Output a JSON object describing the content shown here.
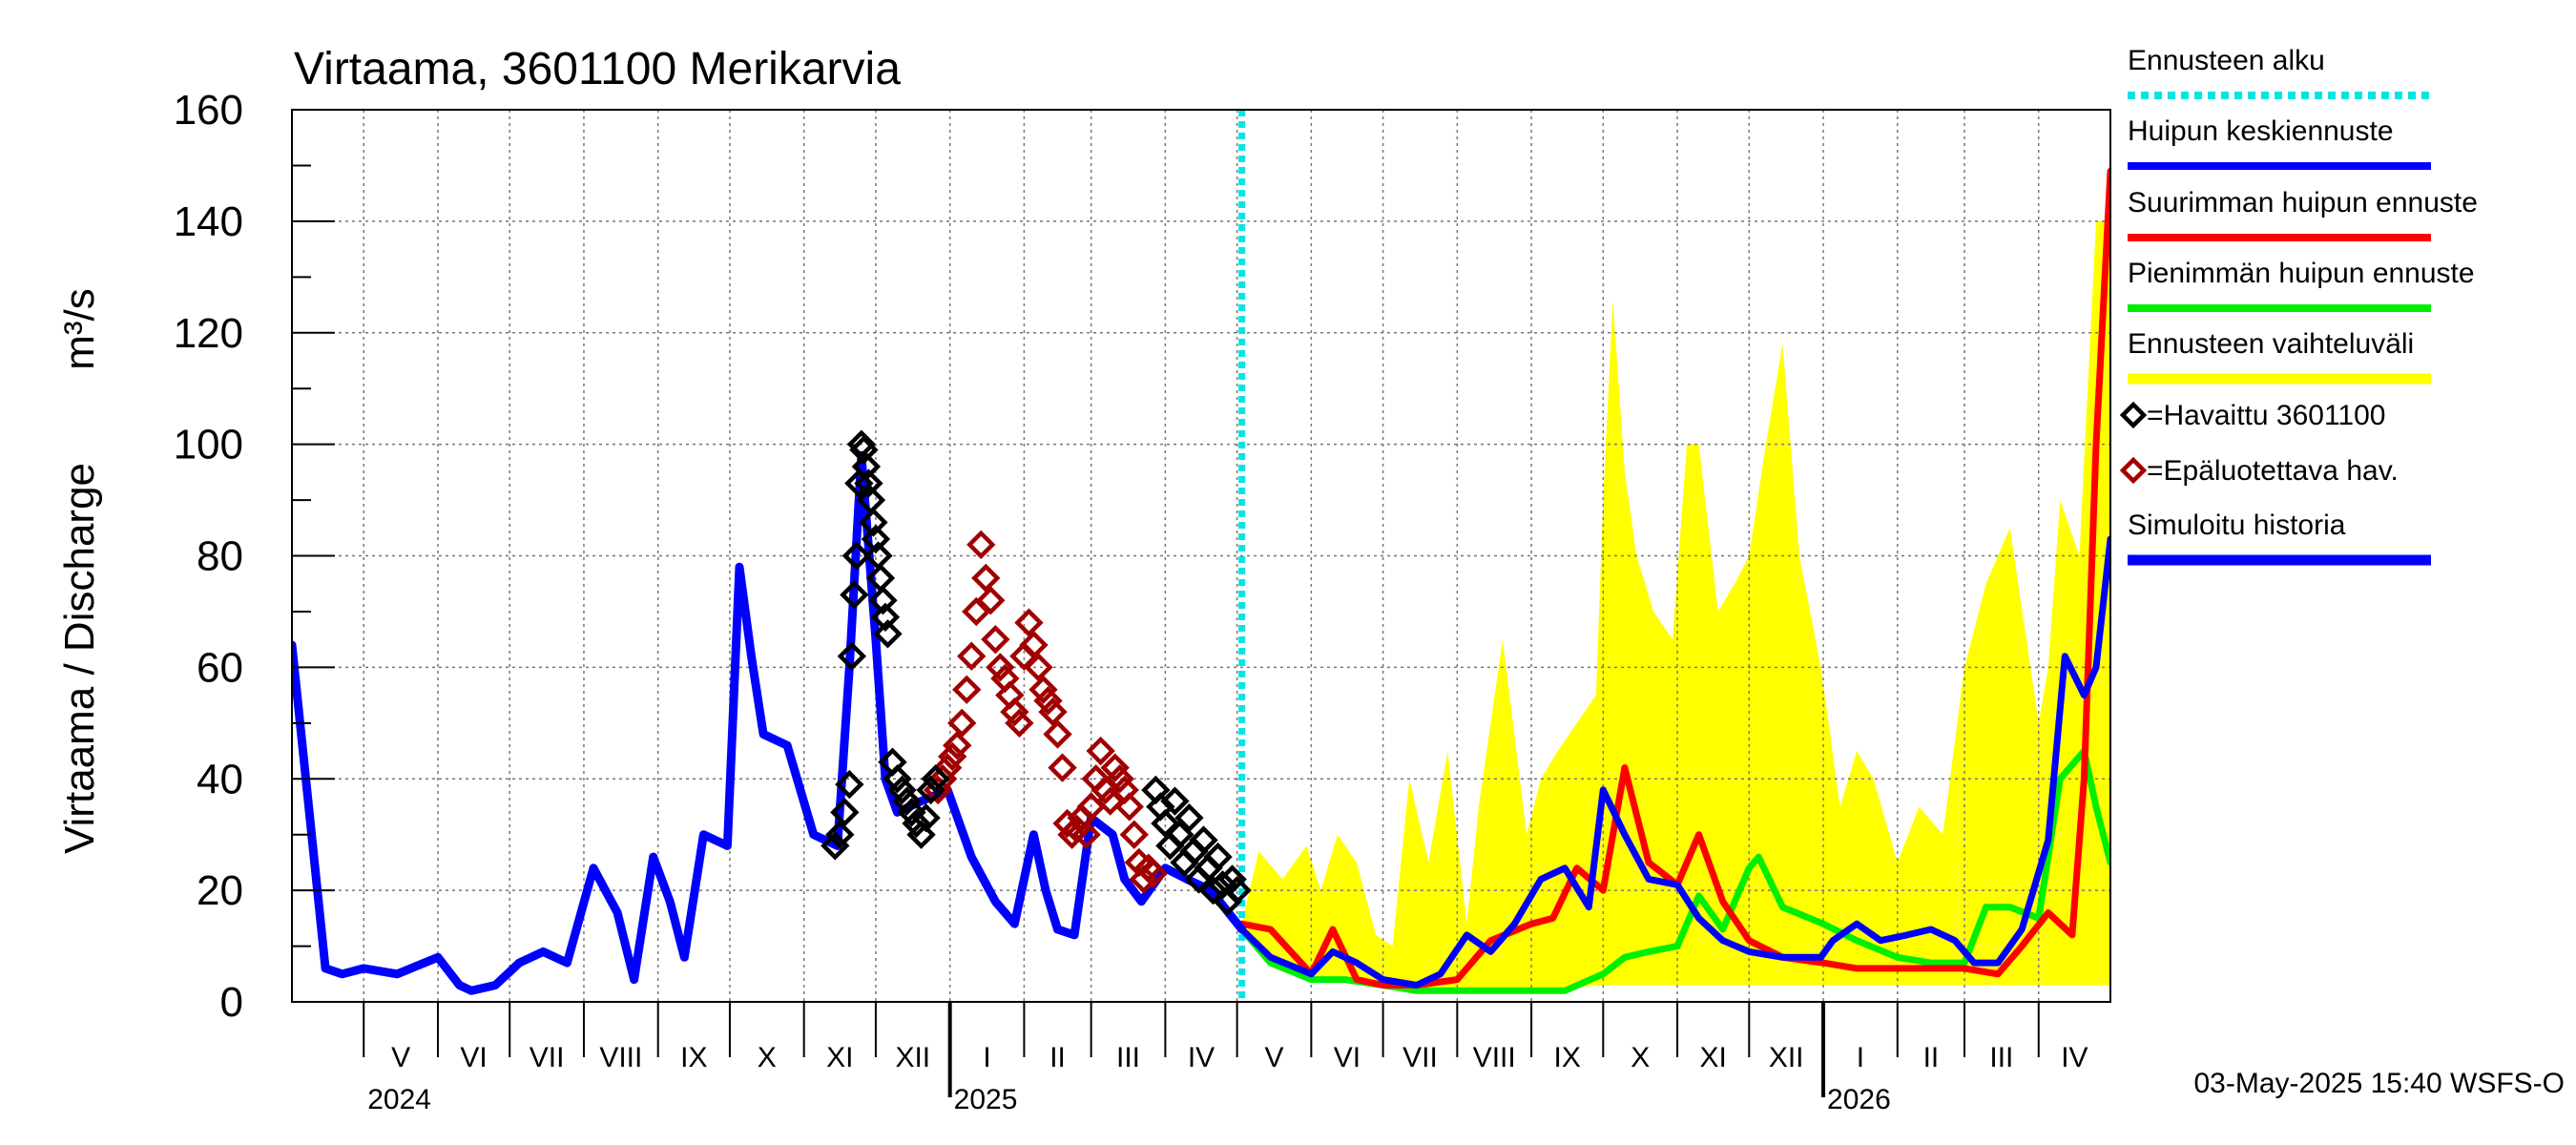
{
  "chart_data": {
    "type": "line",
    "title": "Virtaama, 3601100 Merikarvia",
    "ylabel": "Virtaama / Discharge",
    "yunit": "m³/s",
    "ylim": [
      0,
      160
    ],
    "yticks": [
      0,
      20,
      40,
      60,
      80,
      100,
      120,
      140,
      160
    ],
    "grid": true,
    "legend_position": "right",
    "footer": "03-May-2025 15:40 WSFS-O",
    "xlim": [
      "2024-04-01",
      "2026-05-01"
    ],
    "forecast_start": "2025-05-03",
    "months": [
      {
        "label": "V",
        "start": "2024-05-01"
      },
      {
        "label": "VI",
        "start": "2024-06-01"
      },
      {
        "label": "VII",
        "start": "2024-07-01"
      },
      {
        "label": "VIII",
        "start": "2024-08-01"
      },
      {
        "label": "IX",
        "start": "2024-09-01"
      },
      {
        "label": "X",
        "start": "2024-10-01"
      },
      {
        "label": "XI",
        "start": "2024-11-01"
      },
      {
        "label": "XII",
        "start": "2024-12-01"
      },
      {
        "label": "I",
        "start": "2025-01-01"
      },
      {
        "label": "II",
        "start": "2025-02-01"
      },
      {
        "label": "III",
        "start": "2025-03-01"
      },
      {
        "label": "IV",
        "start": "2025-04-01"
      },
      {
        "label": "V",
        "start": "2025-05-01"
      },
      {
        "label": "VI",
        "start": "2025-06-01"
      },
      {
        "label": "VII",
        "start": "2025-07-01"
      },
      {
        "label": "VIII",
        "start": "2025-08-01"
      },
      {
        "label": "IX",
        "start": "2025-09-01"
      },
      {
        "label": "X",
        "start": "2025-10-01"
      },
      {
        "label": "XI",
        "start": "2025-11-01"
      },
      {
        "label": "XII",
        "start": "2025-12-01"
      },
      {
        "label": "I",
        "start": "2026-01-01"
      },
      {
        "label": "II",
        "start": "2026-02-01"
      },
      {
        "label": "III",
        "start": "2026-03-01"
      },
      {
        "label": "IV",
        "start": "2026-04-01"
      }
    ],
    "years": [
      {
        "label": "2024",
        "start": "2024-05-01"
      },
      {
        "label": "2025",
        "start": "2025-01-01"
      },
      {
        "label": "2026",
        "start": "2026-01-01"
      }
    ],
    "legend": [
      {
        "key": "forecast_start",
        "label": "Ennusteen alku",
        "color": "#00e5e5",
        "style": "dotted"
      },
      {
        "key": "mean",
        "label": "Huipun keskiennuste",
        "color": "#0000ff",
        "style": "line"
      },
      {
        "key": "max",
        "label": "Suurimman huipun ennuste",
        "color": "#ff0000",
        "style": "line"
      },
      {
        "key": "min",
        "label": "Pienimmän huipun ennuste",
        "color": "#00ee00",
        "style": "line"
      },
      {
        "key": "range",
        "label": "Ennusteen vaihteluväli",
        "color": "#ffff00",
        "style": "band"
      },
      {
        "key": "observed",
        "label": "=Havaittu 3601100",
        "color": "#000000",
        "style": "diamond"
      },
      {
        "key": "unreliable",
        "label": "=Epäluotettava hav.",
        "color": "#a00000",
        "style": "diamond"
      },
      {
        "key": "simulated",
        "label": "Simuloitu historia",
        "color": "#0000ff",
        "style": "thick"
      }
    ],
    "series": [
      {
        "key": "simulated",
        "name": "Simuloitu historia",
        "color": "#0000ff",
        "x": [
          "2024-04-01",
          "2024-04-08",
          "2024-04-15",
          "2024-04-22",
          "2024-05-01",
          "2024-05-15",
          "2024-06-01",
          "2024-06-10",
          "2024-06-15",
          "2024-06-25",
          "2024-07-05",
          "2024-07-15",
          "2024-07-25",
          "2024-08-05",
          "2024-08-15",
          "2024-08-22",
          "2024-08-30",
          "2024-09-06",
          "2024-09-12",
          "2024-09-20",
          "2024-09-30",
          "2024-10-05",
          "2024-10-10",
          "2024-10-15",
          "2024-10-25",
          "2024-11-05",
          "2024-11-15",
          "2024-11-20",
          "2024-11-25",
          "2024-12-01",
          "2024-12-05",
          "2024-12-10",
          "2024-12-20",
          "2024-12-31",
          "2025-01-10",
          "2025-01-20",
          "2025-01-28",
          "2025-02-05",
          "2025-02-10",
          "2025-02-15",
          "2025-02-22",
          "2025-03-01",
          "2025-03-10",
          "2025-03-15",
          "2025-03-22",
          "2025-04-01",
          "2025-04-10",
          "2025-04-20",
          "2025-05-03"
        ],
        "y": [
          64,
          35,
          6,
          5,
          6,
          5,
          8,
          3,
          2,
          3,
          7,
          9,
          7,
          24,
          16,
          4,
          26,
          18,
          8,
          30,
          28,
          78,
          62,
          48,
          46,
          30,
          28,
          60,
          98,
          65,
          40,
          34,
          36,
          38,
          26,
          18,
          14,
          30,
          20,
          13,
          12,
          33,
          30,
          22,
          18,
          24,
          22,
          20,
          13
        ]
      },
      {
        "key": "mean",
        "name": "Huipun keskiennuste",
        "color": "#0000ff",
        "x": [
          "2025-05-03",
          "2025-05-15",
          "2025-06-01",
          "2025-06-10",
          "2025-06-20",
          "2025-07-01",
          "2025-07-15",
          "2025-07-25",
          "2025-08-05",
          "2025-08-15",
          "2025-08-25",
          "2025-09-05",
          "2025-09-15",
          "2025-09-25",
          "2025-10-01",
          "2025-10-10",
          "2025-10-20",
          "2025-11-01",
          "2025-11-10",
          "2025-11-20",
          "2025-12-01",
          "2025-12-15",
          "2025-12-31",
          "2026-01-05",
          "2026-01-15",
          "2026-01-25",
          "2026-02-05",
          "2026-02-15",
          "2026-02-25",
          "2026-03-05",
          "2026-03-15",
          "2026-03-25",
          "2026-04-05",
          "2026-04-12",
          "2026-04-20",
          "2026-04-25",
          "2026-05-01"
        ],
        "y": [
          13,
          8,
          5,
          9,
          7,
          4,
          3,
          5,
          12,
          9,
          14,
          22,
          24,
          17,
          38,
          30,
          22,
          21,
          15,
          11,
          9,
          8,
          8,
          11,
          14,
          11,
          12,
          13,
          11,
          7,
          7,
          13,
          29,
          62,
          55,
          60,
          83
        ]
      },
      {
        "key": "max",
        "name": "Suurimman huipun ennuste",
        "color": "#ff0000",
        "x": [
          "2025-05-03",
          "2025-05-15",
          "2025-06-01",
          "2025-06-10",
          "2025-06-20",
          "2025-07-01",
          "2025-07-15",
          "2025-08-01",
          "2025-08-15",
          "2025-09-01",
          "2025-09-10",
          "2025-09-20",
          "2025-10-01",
          "2025-10-10",
          "2025-10-20",
          "2025-11-01",
          "2025-11-10",
          "2025-11-20",
          "2025-12-01",
          "2025-12-15",
          "2026-01-01",
          "2026-01-15",
          "2026-02-01",
          "2026-02-15",
          "2026-03-01",
          "2026-03-15",
          "2026-03-25",
          "2026-04-05",
          "2026-04-15",
          "2026-04-20",
          "2026-04-25",
          "2026-05-01"
        ],
        "y": [
          14,
          13,
          5,
          13,
          4,
          3,
          3,
          4,
          11,
          14,
          15,
          24,
          20,
          42,
          25,
          21,
          30,
          18,
          11,
          8,
          7,
          6,
          6,
          6,
          6,
          5,
          10,
          16,
          12,
          40,
          100,
          149
        ]
      },
      {
        "key": "min",
        "name": "Pienimmän huipun ennuste",
        "color": "#00ee00",
        "x": [
          "2025-05-03",
          "2025-05-15",
          "2025-06-01",
          "2025-06-15",
          "2025-07-01",
          "2025-07-15",
          "2025-08-01",
          "2025-08-15",
          "2025-09-01",
          "2025-09-15",
          "2025-10-01",
          "2025-10-10",
          "2025-10-20",
          "2025-11-01",
          "2025-11-10",
          "2025-11-20",
          "2025-12-01",
          "2025-12-05",
          "2025-12-15",
          "2026-01-01",
          "2026-01-15",
          "2026-02-01",
          "2026-02-15",
          "2026-03-01",
          "2026-03-10",
          "2026-03-20",
          "2026-04-01",
          "2026-04-10",
          "2026-04-20",
          "2026-04-25",
          "2026-05-01"
        ],
        "y": [
          13,
          7,
          4,
          4,
          3,
          2,
          2,
          2,
          2,
          2,
          5,
          8,
          9,
          10,
          19,
          13,
          24,
          26,
          17,
          14,
          11,
          8,
          7,
          7,
          17,
          17,
          15,
          40,
          45,
          35,
          25
        ]
      },
      {
        "key": "range_top",
        "name": "Ennusteen vaihteluväli",
        "color": "#ffff00",
        "x": [
          "2025-05-03",
          "2025-05-10",
          "2025-05-20",
          "2025-05-30",
          "2025-06-05",
          "2025-06-12",
          "2025-06-20",
          "2025-06-28",
          "2025-07-05",
          "2025-07-12",
          "2025-07-20",
          "2025-07-28",
          "2025-08-05",
          "2025-08-10",
          "2025-08-20",
          "2025-08-30",
          "2025-09-05",
          "2025-09-12",
          "2025-09-20",
          "2025-09-28",
          "2025-10-01",
          "2025-10-05",
          "2025-10-10",
          "2025-10-15",
          "2025-10-22",
          "2025-10-30",
          "2025-11-05",
          "2025-11-10",
          "2025-11-18",
          "2025-11-25",
          "2025-12-01",
          "2025-12-08",
          "2025-12-15",
          "2025-12-22",
          "2025-12-31",
          "2026-01-08",
          "2026-01-15",
          "2026-01-22",
          "2026-02-01",
          "2026-02-10",
          "2026-02-20",
          "2026-03-01",
          "2026-03-10",
          "2026-03-20",
          "2026-04-01",
          "2026-04-05",
          "2026-04-10",
          "2026-04-18",
          "2026-04-25",
          "2026-05-01"
        ],
        "y": [
          14,
          27,
          22,
          28,
          20,
          30,
          25,
          12,
          10,
          40,
          25,
          45,
          14,
          35,
          65,
          30,
          40,
          45,
          50,
          55,
          90,
          126,
          95,
          80,
          70,
          65,
          100,
          100,
          70,
          75,
          80,
          100,
          118,
          80,
          60,
          35,
          45,
          40,
          25,
          35,
          30,
          60,
          75,
          85,
          50,
          60,
          90,
          80,
          140,
          140
        ]
      },
      {
        "key": "range_bottom",
        "name": "Ennusteen vaihteluväli",
        "color": "#ffff00",
        "x": [
          "2025-05-03",
          "2025-06-01",
          "2025-07-01",
          "2025-08-01",
          "2025-09-01",
          "2025-10-01",
          "2025-11-01",
          "2025-12-01",
          "2026-01-01",
          "2026-02-01",
          "2026-03-01",
          "2026-04-01",
          "2026-05-01"
        ],
        "y": [
          12,
          4,
          3,
          2,
          2,
          3,
          3,
          3,
          3,
          3,
          3,
          3,
          3
        ]
      }
    ],
    "observed": {
      "name": "=Havaittu 3601100",
      "color": "#000000",
      "x": [
        "2024-11-14",
        "2024-11-16",
        "2024-11-18",
        "2024-11-20",
        "2024-11-21",
        "2024-11-22",
        "2024-11-23",
        "2024-11-24",
        "2024-11-25",
        "2024-11-26",
        "2024-11-27",
        "2024-11-28",
        "2024-11-29",
        "2024-11-30",
        "2024-12-01",
        "2024-12-02",
        "2024-12-03",
        "2024-12-04",
        "2024-12-05",
        "2024-12-06",
        "2024-12-08",
        "2024-12-10",
        "2024-12-12",
        "2024-12-14",
        "2024-12-16",
        "2024-12-18",
        "2024-12-20",
        "2024-12-22",
        "2024-12-24",
        "2024-12-26",
        "2025-03-28",
        "2025-03-30",
        "2025-04-01",
        "2025-04-03",
        "2025-04-05",
        "2025-04-07",
        "2025-04-09",
        "2025-04-11",
        "2025-04-13",
        "2025-04-15",
        "2025-04-17",
        "2025-04-19",
        "2025-04-21",
        "2025-04-23",
        "2025-04-25",
        "2025-04-27",
        "2025-04-29",
        "2025-05-01"
      ],
      "y": [
        28,
        30,
        34,
        39,
        62,
        73,
        80,
        93,
        100,
        99,
        96,
        93,
        90,
        86,
        83,
        80,
        76,
        72,
        69,
        66,
        43,
        40,
        38,
        36,
        34,
        32,
        30,
        33,
        38,
        40,
        38,
        35,
        32,
        28,
        36,
        30,
        25,
        33,
        27,
        22,
        29,
        24,
        20,
        26,
        21,
        18,
        22,
        20
      ]
    },
    "unreliable": {
      "name": "=Epäluotettava hav.",
      "color": "#a00000",
      "x": [
        "2024-12-27",
        "2024-12-29",
        "2024-12-31",
        "2025-01-02",
        "2025-01-04",
        "2025-01-06",
        "2025-01-08",
        "2025-01-10",
        "2025-01-12",
        "2025-01-14",
        "2025-01-16",
        "2025-01-18",
        "2025-01-20",
        "2025-01-22",
        "2025-01-24",
        "2025-01-26",
        "2025-01-28",
        "2025-01-30",
        "2025-02-01",
        "2025-02-03",
        "2025-02-05",
        "2025-02-07",
        "2025-02-09",
        "2025-02-11",
        "2025-02-13",
        "2025-02-15",
        "2025-02-17",
        "2025-02-19",
        "2025-02-21",
        "2025-02-23",
        "2025-02-25",
        "2025-02-27",
        "2025-03-01",
        "2025-03-03",
        "2025-03-05",
        "2025-03-07",
        "2025-03-09",
        "2025-03-11",
        "2025-03-13",
        "2025-03-15",
        "2025-03-17",
        "2025-03-19",
        "2025-03-21",
        "2025-03-23",
        "2025-03-25",
        "2025-03-27"
      ],
      "y": [
        38,
        40,
        42,
        44,
        46,
        50,
        56,
        62,
        70,
        82,
        76,
        72,
        65,
        60,
        58,
        55,
        52,
        50,
        62,
        68,
        64,
        60,
        56,
        54,
        52,
        48,
        42,
        32,
        30,
        31,
        33,
        30,
        35,
        40,
        45,
        38,
        36,
        42,
        40,
        38,
        35,
        30,
        25,
        22,
        24,
        23
      ]
    }
  }
}
